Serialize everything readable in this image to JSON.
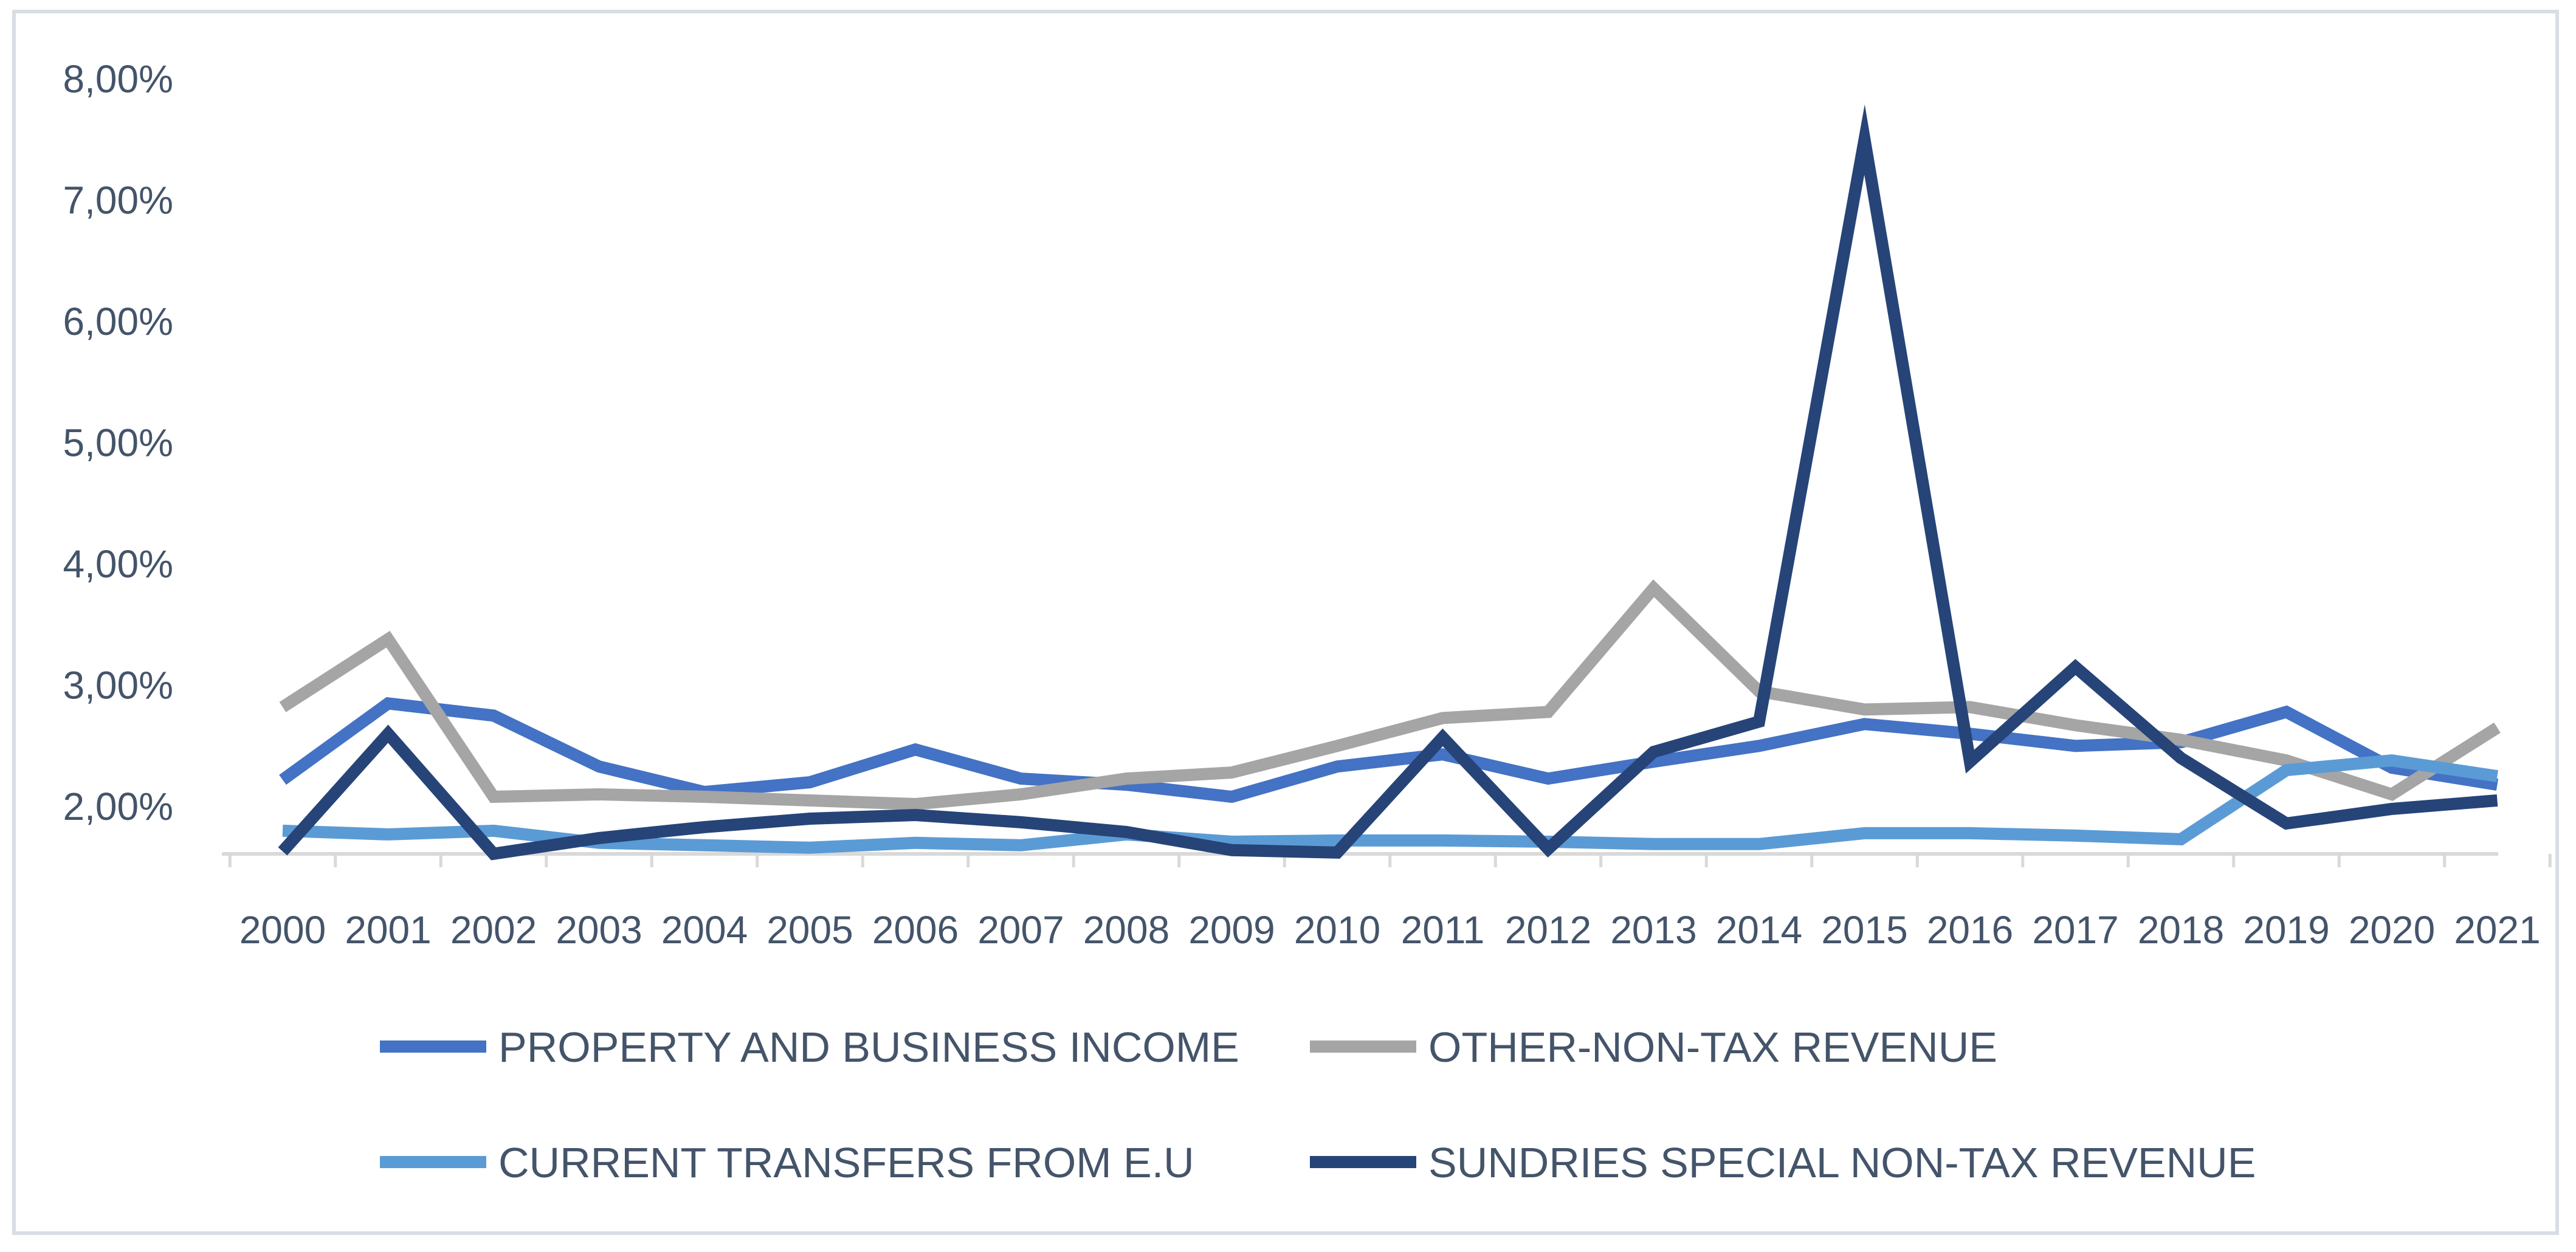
{
  "chart_data": {
    "type": "line",
    "title": "",
    "xlabel": "",
    "ylabel": "",
    "categories": [
      "2000",
      "2001",
      "2002",
      "2003",
      "2004",
      "2005",
      "2006",
      "2007",
      "2008",
      "2009",
      "2010",
      "2011",
      "2012",
      "2013",
      "2014",
      "2015",
      "2016",
      "2017",
      "2018",
      "2019",
      "2020",
      "2021"
    ],
    "y_ticks": [
      "2,00%",
      "3,00%",
      "4,00%",
      "5,00%",
      "6,00%",
      "7,00%",
      "8,00%"
    ],
    "ylim": [
      1.6,
      8.2
    ],
    "grid": false,
    "legend_position": "bottom",
    "series": [
      {
        "name": "PROPERTY AND BUSINESS INCOME",
        "color": "#4472c4",
        "values": [
          2.22,
          2.85,
          2.75,
          2.33,
          2.12,
          2.2,
          2.47,
          2.23,
          2.18,
          2.08,
          2.33,
          2.43,
          2.23,
          2.37,
          2.5,
          2.68,
          2.6,
          2.5,
          2.53,
          2.78,
          2.32,
          2.18
        ]
      },
      {
        "name": "OTHER-NON-TAX REVENUE",
        "color": "#a5a5a5",
        "values": [
          2.82,
          3.38,
          2.08,
          2.1,
          2.08,
          2.05,
          2.02,
          2.1,
          2.23,
          2.28,
          2.5,
          2.73,
          2.78,
          3.8,
          2.95,
          2.8,
          2.82,
          2.67,
          2.55,
          2.38,
          2.1,
          2.65
        ]
      },
      {
        "name": "CURRENT TRANSFERS FROM E.U",
        "color": "#5b9bd5",
        "values": [
          1.8,
          1.77,
          1.8,
          1.7,
          1.68,
          1.66,
          1.7,
          1.68,
          1.77,
          1.71,
          1.72,
          1.72,
          1.71,
          1.69,
          1.69,
          1.78,
          1.78,
          1.76,
          1.73,
          2.3,
          2.38,
          2.25
        ]
      },
      {
        "name": "SUNDRIES SPECIAL NON-TAX REVENUE",
        "color": "#264478",
        "values": [
          1.63,
          2.6,
          1.61,
          1.74,
          1.83,
          1.9,
          1.93,
          1.87,
          1.79,
          1.64,
          1.62,
          2.57,
          1.65,
          2.45,
          2.7,
          7.5,
          2.37,
          3.15,
          2.4,
          1.86,
          1.98,
          2.05
        ]
      }
    ]
  }
}
